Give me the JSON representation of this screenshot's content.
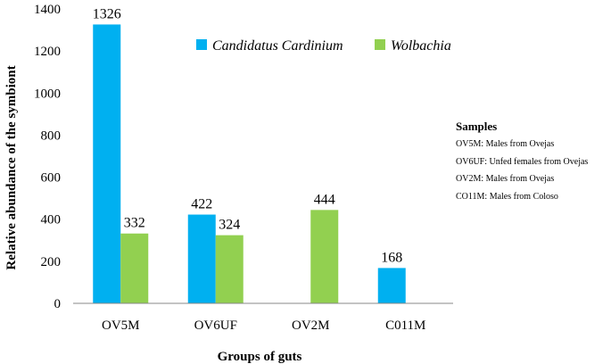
{
  "chart_data": {
    "type": "bar",
    "categories": [
      "OV5M",
      "OV6UF",
      "OV2M",
      "C011M"
    ],
    "series": [
      {
        "name": "Candidatus Cardinium",
        "color": "#00B0F0",
        "values": [
          1326,
          422,
          null,
          168
        ]
      },
      {
        "name": "Wolbachia",
        "color": "#92D050",
        "values": [
          332,
          324,
          444,
          null
        ]
      }
    ],
    "data_labels": [
      [
        "1326",
        "332"
      ],
      [
        "422",
        "324"
      ],
      [
        "",
        "444"
      ],
      [
        "168",
        ""
      ]
    ],
    "ylim": [
      0,
      1400
    ],
    "yticks": [
      0,
      200,
      400,
      600,
      800,
      1000,
      1200,
      1400
    ],
    "xlabel": "Groups of guts",
    "ylabel": "Relative abundance of  the symbiont",
    "legend_position": "top-right",
    "grid": false
  },
  "samples": {
    "title": "Samples",
    "items": [
      "OV5M: Males from Ovejas",
      "OV6UF:  Unfed females from Ovejas",
      "OV2M:  Males from Ovejas",
      "CO11M: Males from Coloso"
    ]
  }
}
